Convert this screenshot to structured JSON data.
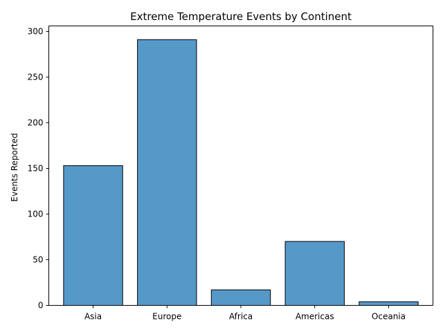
{
  "chart_data": {
    "type": "bar",
    "title": "Extreme Temperature Events by Continent",
    "xlabel": "",
    "ylabel": "Events Reported",
    "categories": [
      "Asia",
      "Europe",
      "Africa",
      "Americas",
      "Oceania"
    ],
    "values": [
      153,
      291,
      17,
      70,
      4
    ],
    "ylim": [
      0,
      306
    ],
    "yticks": [
      0,
      50,
      100,
      150,
      200,
      250,
      300
    ],
    "bar_color": "#5599c8",
    "edge_color": "#000000",
    "grid": false,
    "legend": "none"
  }
}
